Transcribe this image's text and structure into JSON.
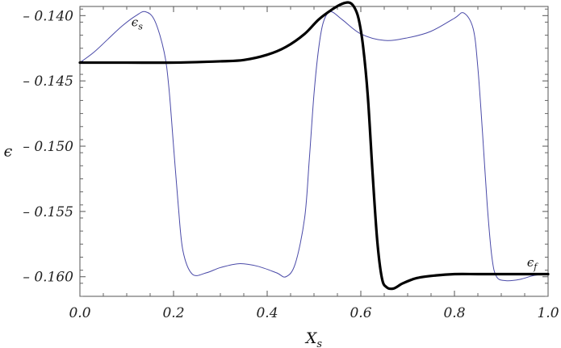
{
  "chart_data": {
    "type": "line",
    "xlabel": "X_s",
    "ylabel": "ϵ",
    "xlim": [
      0.0,
      1.0
    ],
    "ylim": [
      -0.1615,
      -0.1393
    ],
    "xticks": [
      {
        "value": 0.0,
        "label": "0.0"
      },
      {
        "value": 0.2,
        "label": "0.2"
      },
      {
        "value": 0.4,
        "label": "0.4"
      },
      {
        "value": 0.6,
        "label": "0.6"
      },
      {
        "value": 0.8,
        "label": "0.8"
      },
      {
        "value": 1.0,
        "label": "1.0"
      }
    ],
    "yticks": [
      {
        "value": -0.14,
        "label": "– 0.140"
      },
      {
        "value": -0.145,
        "label": "– 0.145"
      },
      {
        "value": -0.15,
        "label": "– 0.150"
      },
      {
        "value": -0.155,
        "label": "– 0.155"
      },
      {
        "value": -0.16,
        "label": "– 0.160"
      }
    ],
    "grid": false,
    "series": [
      {
        "name": "ϵ_s",
        "color": "#4a4aa8",
        "x": [
          0.0,
          0.03,
          0.06,
          0.09,
          0.12,
          0.14,
          0.16,
          0.18,
          0.19,
          0.2,
          0.21,
          0.22,
          0.24,
          0.27,
          0.3,
          0.34,
          0.38,
          0.42,
          0.44,
          0.46,
          0.48,
          0.49,
          0.5,
          0.51,
          0.52,
          0.535,
          0.56,
          0.6,
          0.65,
          0.7,
          0.75,
          0.8,
          0.82,
          0.84,
          0.85,
          0.86,
          0.87,
          0.88,
          0.89,
          0.91,
          0.94,
          0.97,
          1.0
        ],
        "y": [
          -0.1436,
          -0.1428,
          -0.1418,
          -0.1408,
          -0.14,
          -0.1397,
          -0.1404,
          -0.1428,
          -0.1455,
          -0.15,
          -0.1545,
          -0.158,
          -0.1598,
          -0.1597,
          -0.1593,
          -0.159,
          -0.1592,
          -0.1597,
          -0.16,
          -0.159,
          -0.1555,
          -0.151,
          -0.146,
          -0.1425,
          -0.1405,
          -0.1397,
          -0.1403,
          -0.1414,
          -0.1419,
          -0.1417,
          -0.1412,
          -0.1402,
          -0.1398,
          -0.141,
          -0.144,
          -0.149,
          -0.1545,
          -0.1585,
          -0.16,
          -0.1603,
          -0.1602,
          -0.1599,
          -0.1598
        ]
      },
      {
        "name": "ϵ_f",
        "color": "#000000",
        "x": [
          0.0,
          0.1,
          0.2,
          0.3,
          0.35,
          0.4,
          0.44,
          0.48,
          0.51,
          0.54,
          0.56,
          0.575,
          0.585,
          0.595,
          0.605,
          0.615,
          0.625,
          0.635,
          0.645,
          0.655,
          0.67,
          0.69,
          0.72,
          0.76,
          0.8,
          0.85,
          0.9,
          0.95,
          1.0
        ],
        "y": [
          -0.1436,
          -0.1436,
          -0.1436,
          -0.1435,
          -0.1434,
          -0.143,
          -0.1424,
          -0.1414,
          -0.1403,
          -0.1395,
          -0.1391,
          -0.139,
          -0.1393,
          -0.1402,
          -0.1424,
          -0.1462,
          -0.152,
          -0.1572,
          -0.1601,
          -0.1608,
          -0.1609,
          -0.1605,
          -0.1601,
          -0.1599,
          -0.1598,
          -0.1598,
          -0.1598,
          -0.1598,
          -0.1598
        ]
      }
    ],
    "annotations": [
      {
        "text_main": "ϵ",
        "text_sub": "s",
        "series": "ϵ_s",
        "x": 0.11,
        "y": -0.1408
      },
      {
        "text_main": "ϵ",
        "text_sub": "f",
        "series": "ϵ_f",
        "x": 0.955,
        "y": -0.1592
      }
    ]
  }
}
